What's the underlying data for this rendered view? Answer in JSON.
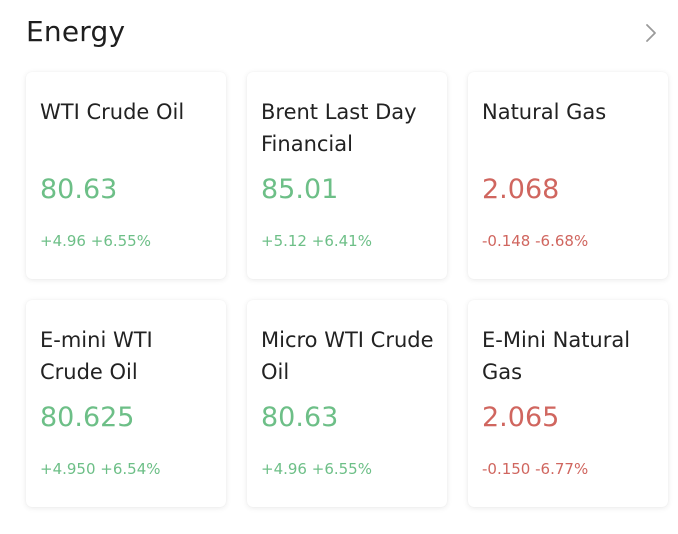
{
  "section": {
    "title": "Energy",
    "more_icon": "chevron-right-icon"
  },
  "colors": {
    "up": "#6dbf87",
    "down": "#d0665f",
    "text": "#1e1e1e",
    "chevron": "#9a9a9a"
  },
  "cards": [
    {
      "name": "WTI Crude Oil",
      "price": "80.63",
      "change": "+4.96",
      "percent": "+6.55%",
      "trend": "up"
    },
    {
      "name": "Brent Last Day Financial",
      "price": "85.01",
      "change": "+5.12",
      "percent": "+6.41%",
      "trend": "up"
    },
    {
      "name": "Natural Gas",
      "price": "2.068",
      "change": "-0.148",
      "percent": "-6.68%",
      "trend": "down"
    },
    {
      "name": "E-mini WTI Crude Oil",
      "price": "80.625",
      "change": "+4.950",
      "percent": "+6.54%",
      "trend": "up"
    },
    {
      "name": "Micro WTI Crude Oil",
      "price": "80.63",
      "change": "+4.96",
      "percent": "+6.55%",
      "trend": "up"
    },
    {
      "name": "E-Mini Natural Gas",
      "price": "2.065",
      "change": "-0.150",
      "percent": "-6.77%",
      "trend": "down"
    }
  ]
}
